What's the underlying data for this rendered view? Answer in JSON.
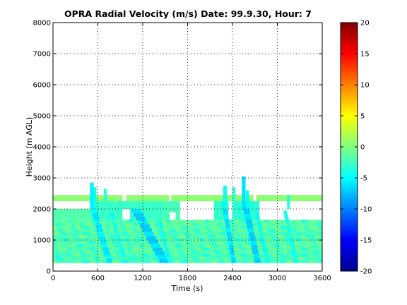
{
  "chart_data": {
    "type": "heatmap",
    "title": "OPRA Radial Velocity (m/s)  Date: 99.9.30, Hour: 7",
    "xlabel": "Time (s)",
    "ylabel": "Height (m AGL)",
    "xlim": [
      0,
      3600
    ],
    "ylim": [
      0,
      8000
    ],
    "x_ticks": [
      "0",
      "600",
      "1200",
      "1800",
      "2400",
      "3000",
      "3600"
    ],
    "y_ticks": [
      "0",
      "1000",
      "2000",
      "3000",
      "4000",
      "5000",
      "6000",
      "7000",
      "8000"
    ],
    "grid": true,
    "colorbar": {
      "colormap": "jet",
      "range": [
        -20,
        20
      ],
      "ticks": [
        "20",
        "15",
        "10",
        "5",
        "0",
        "-5",
        "-10",
        "-15",
        "-20"
      ]
    },
    "base_velocity": -1.5,
    "layers": [
      {
        "t0": 0,
        "t1": 3600,
        "h0": 260,
        "h1": 600,
        "v": -2.5
      },
      {
        "t0": 0,
        "t1": 3600,
        "h0": 600,
        "h1": 900,
        "v": -1.8
      },
      {
        "t0": 0,
        "t1": 3600,
        "h0": 900,
        "h1": 1250,
        "v": -2.2
      },
      {
        "t0": 0,
        "t1": 3600,
        "h0": 1250,
        "h1": 1650,
        "v": -1.6
      },
      {
        "t0": 0,
        "t1": 520,
        "h0": 1650,
        "h1": 2000,
        "v": -1.8
      }
    ],
    "band_layer": {
      "t0": 0,
      "t1": 3600,
      "h0": 2250,
      "h1": 2450,
      "v": 0.5
    },
    "gaps": [
      {
        "t0": 520,
        "t1": 560,
        "h0": 2250,
        "h1": 2450
      },
      {
        "t0": 930,
        "t1": 980,
        "h0": 2250,
        "h1": 2450
      },
      {
        "t0": 1550,
        "t1": 1580,
        "h0": 2250,
        "h1": 2450
      },
      {
        "t0": 2680,
        "t1": 2720,
        "h0": 2250,
        "h1": 2450
      }
    ],
    "holes": [
      {
        "t0": 930,
        "t1": 1030,
        "h0": 1660,
        "h1": 2000
      },
      {
        "t0": 1560,
        "t1": 1640,
        "h0": 1650,
        "h1": 1900
      },
      {
        "t0": 1700,
        "t1": 2150,
        "h0": 1650,
        "h1": 2000
      },
      {
        "t0": 2350,
        "t1": 2400,
        "h0": 1650,
        "h1": 2000
      },
      {
        "t0": 2760,
        "t1": 2860,
        "h0": 1650,
        "h1": 2000
      },
      {
        "t0": 2980,
        "t1": 3600,
        "h0": 1650,
        "h1": 2250
      }
    ],
    "patches": [
      {
        "t0": 520,
        "t1": 1480,
        "h0": 1650,
        "h1": 2250,
        "v": -2.8
      },
      {
        "t0": 1480,
        "t1": 1700,
        "h0": 1650,
        "h1": 2250,
        "v": -2.2
      },
      {
        "t0": 2150,
        "t1": 2350,
        "h0": 1650,
        "h1": 2250,
        "v": -3.0
      },
      {
        "t0": 2400,
        "t1": 2760,
        "h0": 1650,
        "h1": 2250,
        "v": -3.4
      },
      {
        "t0": 3080,
        "t1": 3260,
        "h0": 1650,
        "h1": 1950,
        "v": -4.5
      },
      {
        "t0": 3120,
        "t1": 3200,
        "h0": 1950,
        "h1": 2100,
        "v": -4.0
      }
    ],
    "spikes": [
      {
        "t": 520,
        "w": 50,
        "h0": 2000,
        "h1": 2850,
        "v": -5.5
      },
      {
        "t": 560,
        "w": 40,
        "h0": 2000,
        "h1": 2700,
        "v": -4.5
      },
      {
        "t": 700,
        "w": 40,
        "h0": 2250,
        "h1": 2650,
        "v": -3.5
      },
      {
        "t": 2300,
        "w": 50,
        "h0": 2000,
        "h1": 2750,
        "v": -4.5
      },
      {
        "t": 2420,
        "w": 40,
        "h0": 2000,
        "h1": 2700,
        "v": -3.5
      },
      {
        "t": 2550,
        "w": 50,
        "h0": 2000,
        "h1": 3050,
        "v": -6.0
      },
      {
        "t": 2600,
        "w": 40,
        "h0": 2000,
        "h1": 2600,
        "v": -5.0
      },
      {
        "t": 3150,
        "w": 40,
        "h0": 2000,
        "h1": 2450,
        "v": -3.5
      }
    ],
    "streaks": [
      {
        "t_top": 540,
        "t_bottom": 760,
        "h_top": 2000,
        "h_bottom": 260,
        "w": 80,
        "v": -6.0
      },
      {
        "t_top": 760,
        "t_bottom": 980,
        "h_top": 2000,
        "h_bottom": 260,
        "w": 50,
        "v": -4.5
      },
      {
        "t_top": 1100,
        "t_bottom": 1500,
        "h_top": 2000,
        "h_bottom": 260,
        "w": 130,
        "v": -7.0
      },
      {
        "t_top": 1420,
        "t_bottom": 1560,
        "h_top": 1700,
        "h_bottom": 260,
        "w": 40,
        "v": -5.0
      },
      {
        "t_top": 2280,
        "t_bottom": 2420,
        "h_top": 2250,
        "h_bottom": 260,
        "w": 60,
        "v": -6.5
      },
      {
        "t_top": 2560,
        "t_bottom": 2740,
        "h_top": 2250,
        "h_bottom": 260,
        "w": 80,
        "v": -7.0
      },
      {
        "t_top": 2720,
        "t_bottom": 2860,
        "h_top": 2000,
        "h_bottom": 260,
        "w": 40,
        "v": -5.0
      },
      {
        "t_top": 3100,
        "t_bottom": 3260,
        "h_top": 1950,
        "h_bottom": 260,
        "w": 50,
        "v": -4.5
      }
    ]
  }
}
